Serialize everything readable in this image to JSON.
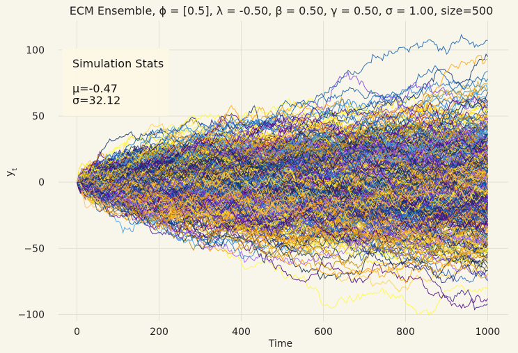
{
  "chart_data": {
    "type": "line",
    "title": "ECM Ensemble, ϕ = [0.5], λ = -0.50, β = 0.50, γ = 0.50, σ = 1.00, size=500",
    "xlabel": "Time",
    "ylabel": "y_t",
    "xlim": [
      -45,
      1050
    ],
    "ylim": [
      -105,
      122
    ],
    "x_ticks": [
      0,
      200,
      400,
      600,
      800,
      1000
    ],
    "y_ticks": [
      -100,
      -50,
      0,
      50,
      100
    ],
    "n_series": 500,
    "n_steps": 1000,
    "start_value": 0,
    "grid": true,
    "stats_box": {
      "title": "Simulation Stats",
      "mean_label": "μ=-0.47",
      "std_label": "σ=32.12",
      "mean": -0.47,
      "std": 32.12
    },
    "palette": [
      "#0a5aa8",
      "#1f77d4",
      "#3aa0e8",
      "#ff9900",
      "#ffa500",
      "#ffd23f",
      "#ffe600",
      "#fffb33",
      "#4b0082",
      "#3a1b8c",
      "#6a0dad",
      "#7b3fe4",
      "#9b59f6",
      "#0b2f6b",
      "#102a43",
      "#b8860b",
      "#c9a227",
      "#ffbb66",
      "#2060c0",
      "#1a237e"
    ],
    "series": [
      {
        "end_value": 107
      },
      {
        "end_value": 84
      },
      {
        "end_value": 70
      },
      {
        "end_value": 62
      },
      {
        "end_value": 55
      },
      {
        "end_value": -47
      },
      {
        "end_value": -62
      },
      {
        "end_value": -80
      },
      {
        "end_value": -88
      },
      {
        "end_value": -92
      }
    ]
  }
}
